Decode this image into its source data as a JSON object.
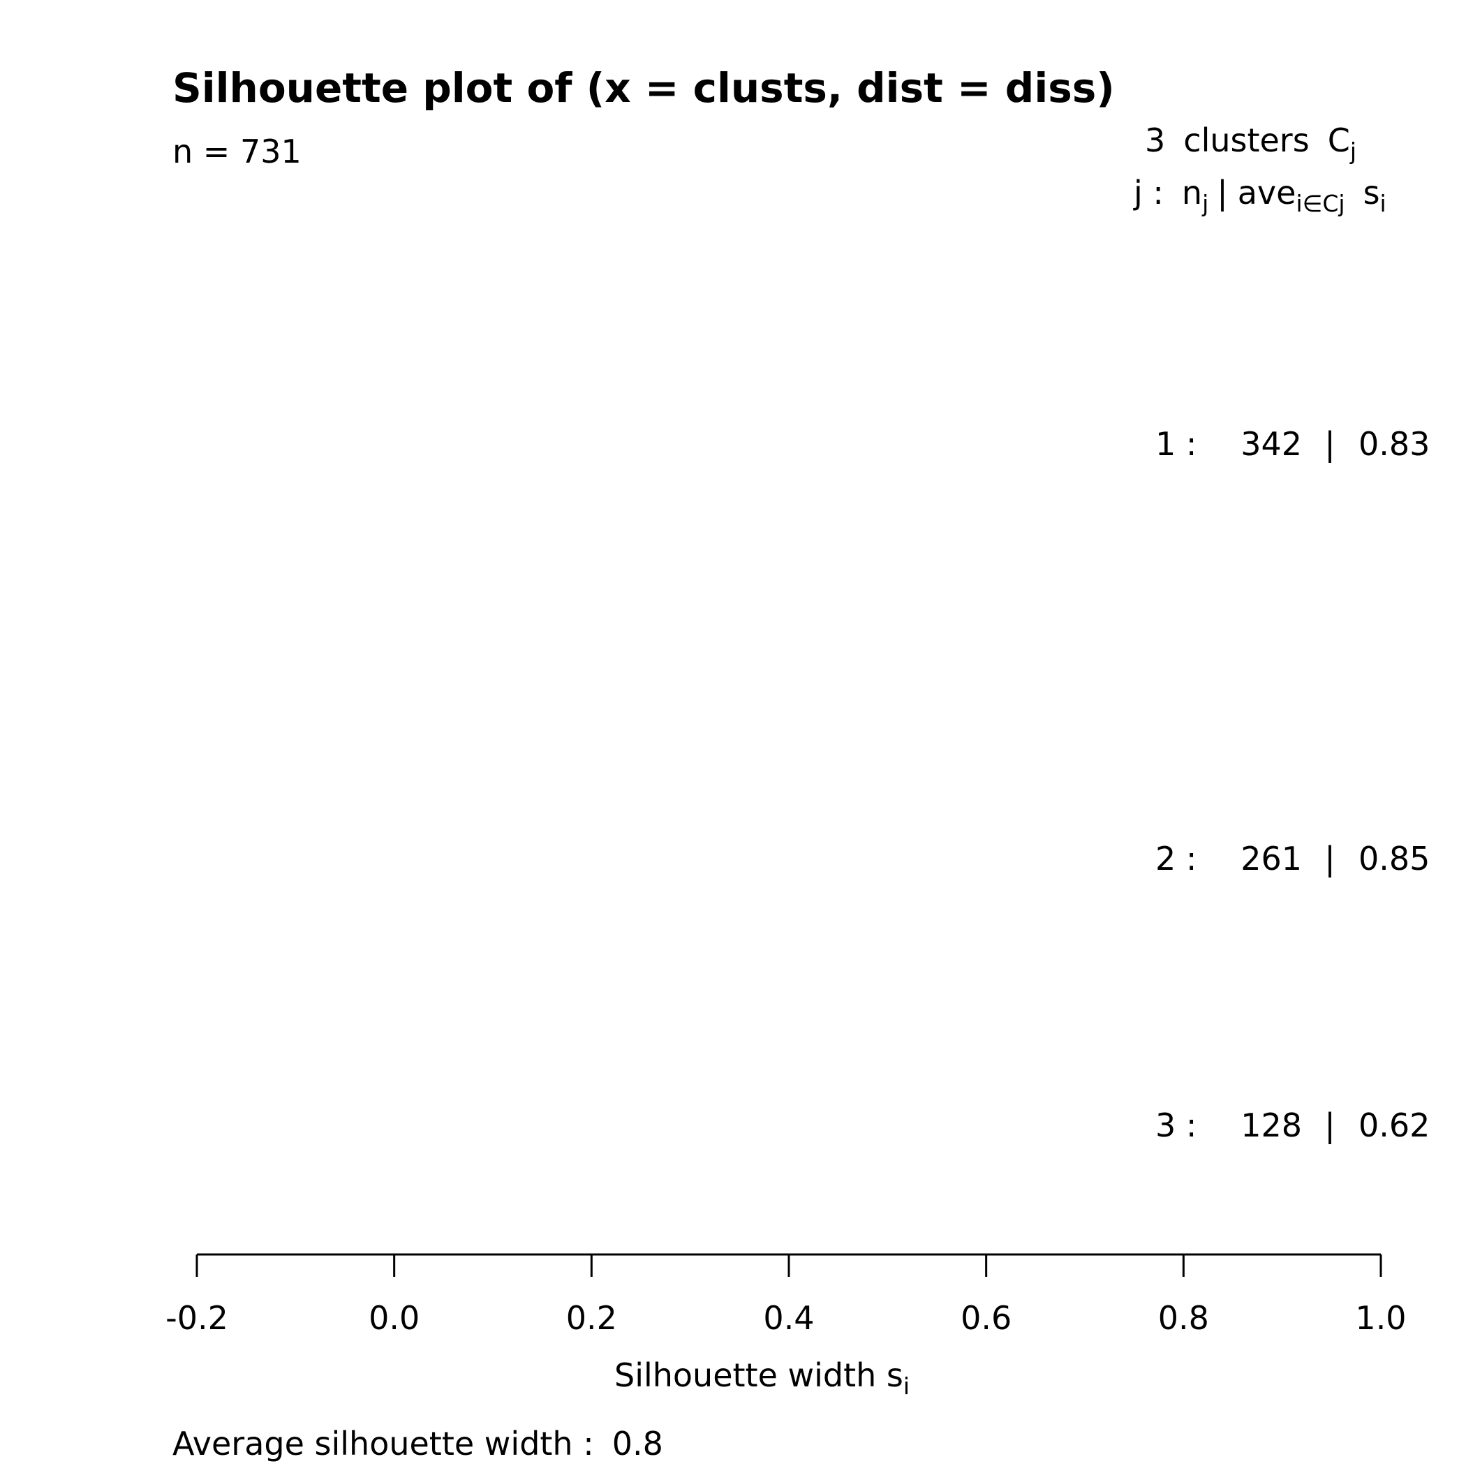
{
  "chart_data": {
    "type": "bar",
    "orientation": "horizontal",
    "title": "Silhouette plot of (x = clusts, dist = diss)",
    "n_label": "n = 731",
    "header": {
      "clusters_count": "3",
      "clusters_word": "clusters",
      "clusters_symbol": "C",
      "clusters_symbol_sub": "j",
      "row2_j": "j :",
      "row2_n": "n",
      "row2_n_sub": "j",
      "row2_sep": "|",
      "row2_ave": "ave",
      "row2_ave_sub": "i∈Cj",
      "row2_s": "s",
      "row2_s_sub": "i"
    },
    "clusters": [
      {
        "label": "1 :",
        "n": 342,
        "n_text": "342",
        "sep": "|",
        "avg": 0.83,
        "avg_text": "0.83"
      },
      {
        "label": "2 :",
        "n": 261,
        "n_text": "261",
        "sep": "|",
        "avg": 0.85,
        "avg_text": "0.85"
      },
      {
        "label": "3 :",
        "n": 128,
        "n_text": "128",
        "sep": "|",
        "avg": 0.62,
        "avg_text": "0.62"
      }
    ],
    "xaxis": {
      "xlim": [
        -0.2,
        1.0
      ],
      "ticks": [
        -0.2,
        0.0,
        0.2,
        0.4,
        0.6,
        0.8,
        1.0
      ],
      "tick_labels": [
        "-0.2",
        "0.0",
        "0.2",
        "0.4",
        "0.6",
        "0.8",
        "1.0"
      ],
      "label_main": "Silhouette width s",
      "label_sub": "i"
    },
    "footer": {
      "label": "Average silhouette width :",
      "value": "0.8"
    },
    "bar_color": "#ffffff",
    "grid": false
  }
}
